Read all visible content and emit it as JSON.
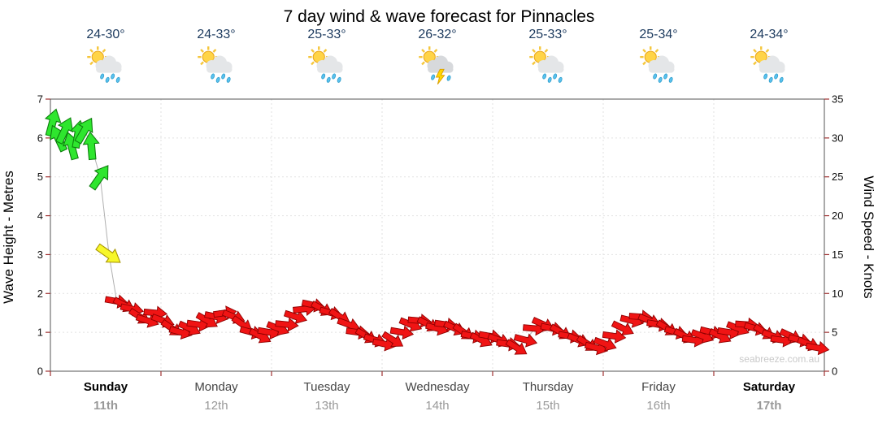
{
  "title": "7 day wind & wave forecast for Pinnacles",
  "watermark": "seabreeze.com.au",
  "days": [
    {
      "temp": "24-30°",
      "name": "Sunday",
      "date": "11th",
      "icon": "showers",
      "bold": true
    },
    {
      "temp": "24-33°",
      "name": "Monday",
      "date": "12th",
      "icon": "showers",
      "bold": false
    },
    {
      "temp": "25-33°",
      "name": "Tuesday",
      "date": "13th",
      "icon": "showers",
      "bold": false
    },
    {
      "temp": "26-32°",
      "name": "Wednesday",
      "date": "14th",
      "icon": "storm",
      "bold": false
    },
    {
      "temp": "25-33°",
      "name": "Thursday",
      "date": "15th",
      "icon": "showers",
      "bold": false
    },
    {
      "temp": "25-34°",
      "name": "Friday",
      "date": "16th",
      "icon": "showers",
      "bold": false
    },
    {
      "temp": "24-34°",
      "name": "Saturday",
      "date": "17th",
      "icon": "showers",
      "bold": true
    }
  ],
  "chart_data": {
    "type": "scatter",
    "title": "7 day wind & wave forecast for Pinnacles",
    "left_axis": {
      "label": "Wave Height - Metres",
      "min": 0,
      "max": 7,
      "ticks": [
        0,
        1,
        2,
        3,
        4,
        5,
        6,
        7
      ]
    },
    "right_axis": {
      "label": "Wind Speed - Knots",
      "min": 0,
      "max": 35,
      "ticks": [
        0,
        5,
        10,
        15,
        20,
        25,
        30,
        35
      ]
    },
    "x_axis": {
      "days": [
        "Sunday",
        "Monday",
        "Tuesday",
        "Wednesday",
        "Thursday",
        "Friday",
        "Saturday"
      ],
      "dates": [
        "11th",
        "12th",
        "13th",
        "14th",
        "15th",
        "16th",
        "17th"
      ]
    },
    "point_format": [
      "t_days",
      "knots",
      "direction_deg",
      "strength_color"
    ],
    "wind_points": [
      [
        0.02,
        32,
        -75,
        "green"
      ],
      [
        0.07,
        30,
        -115,
        "green"
      ],
      [
        0.13,
        31,
        -65,
        "green"
      ],
      [
        0.19,
        29,
        -105,
        "green"
      ],
      [
        0.25,
        30.5,
        -80,
        "green"
      ],
      [
        0.31,
        31,
        -60,
        "green"
      ],
      [
        0.37,
        29,
        -95,
        "green"
      ],
      [
        0.45,
        25,
        -55,
        "green"
      ],
      [
        0.53,
        15,
        35,
        "yellow"
      ],
      [
        0.6,
        9,
        10,
        "red"
      ],
      [
        0.67,
        8.5,
        28,
        "red"
      ],
      [
        0.74,
        8,
        12,
        "red"
      ],
      [
        0.81,
        7,
        32,
        "red"
      ],
      [
        0.88,
        6.5,
        18,
        "red"
      ],
      [
        0.95,
        7.5,
        5,
        "red"
      ],
      [
        1.02,
        6.5,
        20,
        "red"
      ],
      [
        1.1,
        5.5,
        35,
        "red"
      ],
      [
        1.18,
        5,
        15,
        "red"
      ],
      [
        1.26,
        5.5,
        25,
        "red"
      ],
      [
        1.34,
        6,
        8,
        "red"
      ],
      [
        1.42,
        6.5,
        30,
        "red"
      ],
      [
        1.5,
        7,
        12,
        "red"
      ],
      [
        1.58,
        7.5,
        -8,
        "red"
      ],
      [
        1.66,
        7,
        22,
        "red"
      ],
      [
        1.74,
        6,
        35,
        "red"
      ],
      [
        1.82,
        5,
        15,
        "red"
      ],
      [
        1.9,
        4.5,
        28,
        "red"
      ],
      [
        1.98,
        5,
        10,
        "red"
      ],
      [
        2.06,
        5.5,
        22,
        "red"
      ],
      [
        2.14,
        6,
        6,
        "red"
      ],
      [
        2.22,
        7,
        18,
        "red"
      ],
      [
        2.3,
        8,
        -6,
        "red"
      ],
      [
        2.38,
        8.5,
        12,
        "red"
      ],
      [
        2.46,
        8,
        28,
        "red"
      ],
      [
        2.54,
        7.5,
        15,
        "red"
      ],
      [
        2.62,
        7,
        32,
        "red"
      ],
      [
        2.7,
        6,
        20,
        "red"
      ],
      [
        2.78,
        5,
        8,
        "red"
      ],
      [
        2.86,
        4.5,
        30,
        "red"
      ],
      [
        2.94,
        4,
        18,
        "red"
      ],
      [
        3.02,
        3.5,
        12,
        "red"
      ],
      [
        3.1,
        4,
        32,
        "red"
      ],
      [
        3.18,
        5,
        10,
        "red"
      ],
      [
        3.26,
        6,
        22,
        "red"
      ],
      [
        3.34,
        6.5,
        5,
        "red"
      ],
      [
        3.42,
        6,
        28,
        "red"
      ],
      [
        3.5,
        5.5,
        15,
        "red"
      ],
      [
        3.58,
        6,
        8,
        "red"
      ],
      [
        3.66,
        5.5,
        25,
        "red"
      ],
      [
        3.74,
        5,
        35,
        "red"
      ],
      [
        3.82,
        4.5,
        12,
        "red"
      ],
      [
        3.9,
        4,
        26,
        "red"
      ],
      [
        3.98,
        4.5,
        10,
        "red"
      ],
      [
        4.06,
        4,
        20,
        "red"
      ],
      [
        4.14,
        3.5,
        8,
        "red"
      ],
      [
        4.22,
        3,
        32,
        "red"
      ],
      [
        4.3,
        4,
        15,
        "red"
      ],
      [
        4.38,
        5.5,
        5,
        "red"
      ],
      [
        4.46,
        6,
        24,
        "red"
      ],
      [
        4.54,
        5.5,
        12,
        "red"
      ],
      [
        4.62,
        5,
        30,
        "red"
      ],
      [
        4.7,
        4.5,
        10,
        "red"
      ],
      [
        4.78,
        4,
        22,
        "red"
      ],
      [
        4.86,
        3.5,
        33,
        "red"
      ],
      [
        4.94,
        3,
        15,
        "red"
      ],
      [
        5.02,
        3.5,
        20,
        "red"
      ],
      [
        5.1,
        4.5,
        8,
        "red"
      ],
      [
        5.18,
        5.5,
        26,
        "red"
      ],
      [
        5.26,
        6.5,
        14,
        "red"
      ],
      [
        5.34,
        7,
        4,
        "red"
      ],
      [
        5.42,
        6.5,
        22,
        "red"
      ],
      [
        5.5,
        6,
        10,
        "red"
      ],
      [
        5.58,
        5.5,
        32,
        "red"
      ],
      [
        5.66,
        5,
        16,
        "red"
      ],
      [
        5.74,
        4.5,
        27,
        "red"
      ],
      [
        5.82,
        4,
        8,
        "red"
      ],
      [
        5.9,
        4.5,
        20,
        "red"
      ],
      [
        5.98,
        5,
        14,
        "red"
      ],
      [
        6.06,
        4.5,
        26,
        "red"
      ],
      [
        6.14,
        5,
        9,
        "red"
      ],
      [
        6.22,
        5.5,
        22,
        "red"
      ],
      [
        6.3,
        6,
        4,
        "red"
      ],
      [
        6.38,
        5.5,
        16,
        "red"
      ],
      [
        6.46,
        5,
        31,
        "red"
      ],
      [
        6.54,
        4.5,
        20,
        "red"
      ],
      [
        6.62,
        4,
        8,
        "red"
      ],
      [
        6.7,
        4.5,
        25,
        "red"
      ],
      [
        6.78,
        4,
        14,
        "red"
      ],
      [
        6.86,
        3.5,
        22,
        "red"
      ],
      [
        6.94,
        3,
        10,
        "red"
      ]
    ]
  }
}
